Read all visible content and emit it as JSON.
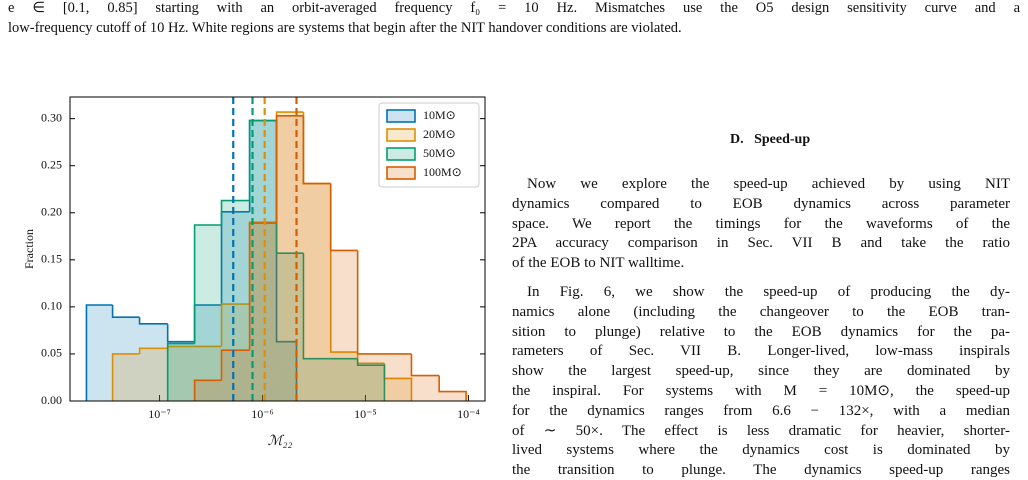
{
  "caption": [
    "e ∈ [0.1, 0.85] starting with an orbit-averaged frequency f₀ = 10 Hz. Mismatches use the O5 design sensitivity curve and a",
    "low-frequency cutoff of 10 Hz. White regions are systems that begin after the NIT handover conditions are violated."
  ],
  "section_heading": "D.   Speed-up",
  "paragraphs": [
    [
      "Now we explore the speed-up achieved by using NIT",
      "dynamics compared to EOB dynamics across parameter",
      "space. We report the timings for the waveforms of the",
      "2PA accuracy comparison in Sec. VII B and take the ratio",
      "of the EOB to NIT walltime."
    ],
    [
      "In Fig. 6, we show the speed-up of producing the dy-",
      "namics alone (including the changeover to the EOB tran-",
      "sition to plunge) relative to the EOB dynamics for the pa-",
      "rameters of Sec. VII B. Longer-lived, low-mass inspirals",
      "show the largest speed-up, since they are dominated by",
      "the inspiral. For systems with M = 10M⊙, the speed-up",
      "for the dynamics ranges from 6.6 − 132×, with a median",
      "of ∼ 50×. The effect is less dramatic for heavier, shorter-",
      "lived systems where the dynamics cost is dominated by",
      "the transition to plunge. The dynamics speed-up ranges"
    ]
  ],
  "chart_data": {
    "type": "histogram",
    "x_label": "ℳ₂₂",
    "y_label": "Fraction",
    "x_log": true,
    "xlim": [
      1.35e-08,
      0.000145
    ],
    "ylim": [
      0,
      0.323
    ],
    "xticks": [
      {
        "value": 1e-07,
        "label": "10⁻⁷"
      },
      {
        "value": 1e-06,
        "label": "10⁻⁶"
      },
      {
        "value": 1e-05,
        "label": "10⁻⁵"
      },
      {
        "value": 0.0001,
        "label": "10⁻⁴"
      }
    ],
    "yticks": [
      {
        "value": 0,
        "label": "0.00"
      },
      0.05,
      {
        "value": 0.1,
        "label": "0.10"
      },
      0.15,
      {
        "value": 0.2,
        "label": "0.20"
      },
      0.25,
      {
        "value": 0.3,
        "label": "0.30"
      }
    ],
    "legend": "upper right",
    "series": [
      {
        "name": "10M⊙",
        "color": "#0173b2",
        "bins": [
          1.95e-08,
          3.5e-08,
          6.4e-08,
          1.2e-07,
          2.19e-07,
          4e-07,
          7.5e-07,
          1.37e-06,
          2.14e-06
        ],
        "values": [
          0.102,
          0.089,
          0.082,
          0.063,
          0.102,
          0.201,
          0.298,
          0.063
        ],
        "median": 5.2e-07
      },
      {
        "name": "20M⊙",
        "color": "#de8f05",
        "bins": [
          3.5e-08,
          6.4e-08,
          1.2e-07,
          2.19e-07,
          4e-07,
          7.5e-07,
          1.37e-06,
          2.5e-06,
          4.6e-06,
          8.4e-06,
          1.53e-05,
          2.8e-05
        ],
        "values": [
          0.05,
          0.056,
          0.058,
          0.058,
          0.103,
          0.19,
          0.307,
          0.231,
          0.052,
          0.04,
          0.024
        ],
        "median": 1.05e-06
      },
      {
        "name": "50M⊙",
        "color": "#029e73",
        "bins": [
          1.2e-07,
          2.19e-07,
          4e-07,
          7.5e-07,
          1.37e-06,
          2.5e-06,
          4.6e-06,
          8.4e-06,
          1.53e-05
        ],
        "values": [
          0.061,
          0.187,
          0.213,
          0.298,
          0.157,
          0.045,
          0.045,
          0.038
        ],
        "median": 8e-07
      },
      {
        "name": "100M⊙",
        "color": "#d55e00",
        "bins": [
          2.19e-07,
          4e-07,
          7.5e-07,
          1.37e-06,
          2.5e-06,
          4.6e-06,
          8.4e-06,
          1.53e-05,
          2.8e-05,
          5.2e-05,
          9.5e-05
        ],
        "values": [
          0.022,
          0.054,
          0.189,
          0.303,
          0.231,
          0.16,
          0.05,
          0.05,
          0.027,
          0.01
        ],
        "median": 2.14e-06
      }
    ]
  }
}
